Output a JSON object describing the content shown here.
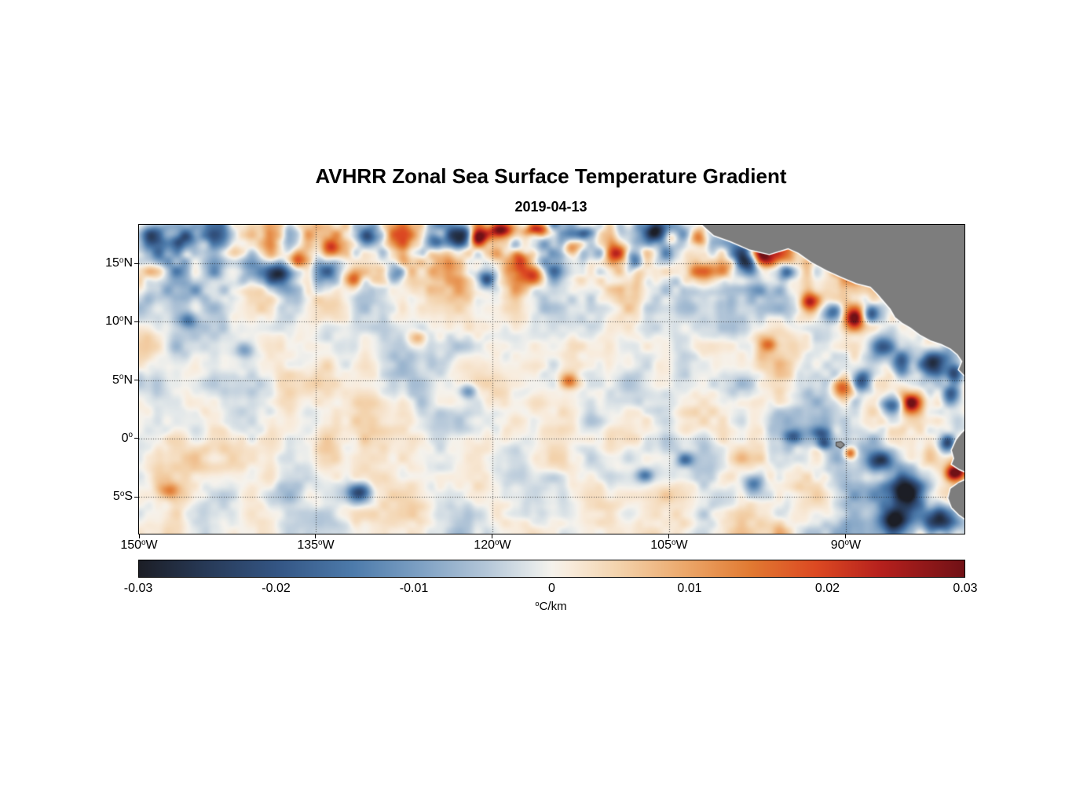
{
  "figure": {
    "title": "AVHRR Zonal Sea Surface Temperature Gradient",
    "subtitle": "2019-04-13"
  },
  "chart_data": {
    "type": "heatmap",
    "title": "AVHRR Zonal Sea Surface Temperature Gradient",
    "subtitle": "2019-04-13",
    "xlim": [
      -150,
      -79.93
    ],
    "ylim": [
      -8.15,
      18.3
    ],
    "grid": {
      "show": true,
      "color": "rgba(30,30,30,0.85)",
      "dash": [
        1,
        2
      ]
    },
    "xticks": [
      {
        "value": -150,
        "label": {
          "text": "150",
          "sup": "o",
          "suffix": "W"
        }
      },
      {
        "value": -135,
        "label": {
          "text": "135",
          "sup": "o",
          "suffix": "W"
        }
      },
      {
        "value": -120,
        "label": {
          "text": "120",
          "sup": "o",
          "suffix": "W"
        }
      },
      {
        "value": -105,
        "label": {
          "text": "105",
          "sup": "o",
          "suffix": "W"
        }
      },
      {
        "value": -90,
        "label": {
          "text": "90",
          "sup": "o",
          "suffix": "W"
        }
      }
    ],
    "yticks": [
      {
        "value": 15,
        "label": {
          "text": "15",
          "sup": "o",
          "suffix": "N"
        }
      },
      {
        "value": 10,
        "label": {
          "text": "10",
          "sup": "o",
          "suffix": "N"
        }
      },
      {
        "value": 5,
        "label": {
          "text": "5",
          "sup": "o",
          "suffix": "N"
        }
      },
      {
        "value": 0,
        "label": {
          "text": "0",
          "sup": "o",
          "suffix": ""
        }
      },
      {
        "value": -5,
        "label": {
          "text": "5",
          "sup": "o",
          "suffix": "S"
        }
      }
    ],
    "colorbar": {
      "min": -0.03,
      "max": 0.03,
      "unit": {
        "sup": "o",
        "text": "C/km"
      },
      "ticks": [
        {
          "value": -0.03,
          "label": "-0.03"
        },
        {
          "value": -0.02,
          "label": "-0.02"
        },
        {
          "value": -0.01,
          "label": "-0.01"
        },
        {
          "value": 0,
          "label": "0"
        },
        {
          "value": 0.01,
          "label": "0.01"
        },
        {
          "value": 0.02,
          "label": "0.02"
        },
        {
          "value": 0.03,
          "label": "0.03"
        }
      ]
    },
    "colormap": [
      [
        0.0,
        "#1c1e26"
      ],
      [
        0.08,
        "#273956"
      ],
      [
        0.17,
        "#345685"
      ],
      [
        0.26,
        "#4d7bab"
      ],
      [
        0.34,
        "#7da0c3"
      ],
      [
        0.42,
        "#b3c6d8"
      ],
      [
        0.48,
        "#e4e9ea"
      ],
      [
        0.5,
        "#f5f2ec"
      ],
      [
        0.52,
        "#f8ecdd"
      ],
      [
        0.58,
        "#f3d3ad"
      ],
      [
        0.66,
        "#eca86b"
      ],
      [
        0.74,
        "#e17a32"
      ],
      [
        0.82,
        "#dc4922"
      ],
      [
        0.9,
        "#b5201d"
      ],
      [
        1.0,
        "#701116"
      ]
    ],
    "texture": {
      "seed": 11,
      "octaves": [
        [
          3.2,
          0.5
        ],
        [
          1.6,
          0.32
        ],
        [
          0.8,
          0.18
        ]
      ],
      "gain": 2.2,
      "base_amp": 0.004,
      "north_amp": 0.008,
      "north_from": 10.5,
      "north_to": 15.5,
      "east_amp": 0.003,
      "east_from": -106,
      "east_to": -88
    },
    "blobs_lon_lat_peak_rx_ry": [
      [
        -149.0,
        17.3,
        -0.014,
        0.9,
        0.8
      ],
      [
        -146.3,
        17.0,
        -0.018,
        1.1,
        0.9
      ],
      [
        -145.8,
        10.1,
        -0.012,
        0.8,
        0.7
      ],
      [
        -141.0,
        7.5,
        -0.01,
        0.8,
        0.7
      ],
      [
        -138.2,
        14.0,
        -0.026,
        1.2,
        1.0
      ],
      [
        -136.8,
        15.4,
        0.018,
        0.9,
        0.8
      ],
      [
        -133.6,
        16.4,
        0.016,
        0.8,
        0.7
      ],
      [
        -131.9,
        13.6,
        0.014,
        0.8,
        0.7
      ],
      [
        -130.3,
        17.3,
        -0.02,
        1.1,
        0.8
      ],
      [
        -128.3,
        14.2,
        -0.022,
        0.9,
        0.9
      ],
      [
        -124.8,
        16.8,
        -0.014,
        0.8,
        0.7
      ],
      [
        -122.6,
        17.4,
        -0.028,
        1.0,
        0.9
      ],
      [
        -121.2,
        17.1,
        0.022,
        0.7,
        0.8
      ],
      [
        -119.2,
        17.9,
        0.03,
        1.0,
        0.7
      ],
      [
        -116.2,
        17.9,
        0.026,
        1.1,
        0.6
      ],
      [
        -117.6,
        15.3,
        0.02,
        0.9,
        0.8
      ],
      [
        -116.4,
        13.9,
        0.022,
        1.1,
        0.9
      ],
      [
        -120.5,
        13.7,
        -0.02,
        0.9,
        0.8
      ],
      [
        -113.3,
        16.3,
        0.018,
        0.9,
        0.8
      ],
      [
        -111.9,
        17.6,
        -0.016,
        0.8,
        0.6
      ],
      [
        -109.4,
        15.9,
        0.026,
        0.9,
        1.0
      ],
      [
        -108.0,
        15.2,
        -0.018,
        0.8,
        0.8
      ],
      [
        -106.2,
        17.6,
        -0.022,
        0.9,
        0.7
      ],
      [
        -104.8,
        17.2,
        0.016,
        0.7,
        0.7
      ],
      [
        -102.6,
        17.3,
        0.024,
        0.8,
        0.8
      ],
      [
        -100.2,
        14.5,
        0.012,
        0.8,
        0.8
      ],
      [
        -98.3,
        14.9,
        -0.016,
        0.8,
        0.8
      ],
      [
        -97.0,
        15.9,
        0.028,
        0.9,
        1.0
      ],
      [
        -95.1,
        14.2,
        -0.022,
        1.0,
        0.9
      ],
      [
        -93.0,
        11.6,
        0.02,
        0.8,
        0.8
      ],
      [
        -91.1,
        10.8,
        -0.02,
        0.9,
        0.8
      ],
      [
        -89.2,
        10.3,
        0.026,
        0.8,
        0.9
      ],
      [
        -87.8,
        10.6,
        -0.018,
        0.7,
        0.7
      ],
      [
        -86.8,
        7.8,
        -0.02,
        0.9,
        0.9
      ],
      [
        -85.2,
        6.3,
        -0.024,
        0.9,
        1.0
      ],
      [
        -82.5,
        6.4,
        -0.03,
        1.3,
        1.1
      ],
      [
        -80.6,
        5.5,
        -0.024,
        0.7,
        0.9
      ],
      [
        -90.2,
        4.3,
        0.026,
        1.0,
        1.0
      ],
      [
        -88.6,
        4.8,
        -0.018,
        0.8,
        0.8
      ],
      [
        -86.0,
        2.8,
        -0.02,
        0.9,
        0.8
      ],
      [
        -84.4,
        3.0,
        0.028,
        0.8,
        0.8
      ],
      [
        -81.0,
        3.8,
        -0.02,
        0.8,
        0.9
      ],
      [
        -96.5,
        8.0,
        0.012,
        0.7,
        0.6
      ],
      [
        -126.5,
        8.6,
        0.011,
        0.8,
        0.6
      ],
      [
        -122.0,
        4.0,
        -0.012,
        0.8,
        0.6
      ],
      [
        -113.5,
        4.9,
        0.012,
        0.7,
        0.6
      ],
      [
        -94.5,
        0.1,
        -0.014,
        0.8,
        0.6
      ],
      [
        -92.0,
        0.3,
        -0.014,
        0.9,
        0.6
      ],
      [
        -91.8,
        -0.5,
        -0.016,
        0.7,
        0.5
      ],
      [
        -89.6,
        -1.3,
        0.02,
        0.5,
        0.5
      ],
      [
        -87.0,
        -2.0,
        -0.022,
        1.1,
        0.9
      ],
      [
        -84.8,
        -4.6,
        -0.034,
        1.6,
        1.6
      ],
      [
        -85.8,
        -7.0,
        -0.026,
        1.3,
        1.0
      ],
      [
        -82.2,
        -7.2,
        -0.03,
        1.6,
        1.3
      ],
      [
        -81.3,
        -0.5,
        -0.026,
        0.7,
        0.8
      ],
      [
        -80.6,
        -3.0,
        0.036,
        0.8,
        0.7
      ],
      [
        -79.9,
        -2.2,
        0.02,
        0.4,
        0.5
      ],
      [
        -131.3,
        -4.7,
        -0.024,
        1.0,
        0.8
      ],
      [
        -107.0,
        -3.2,
        -0.014,
        0.7,
        0.6
      ],
      [
        -103.6,
        -1.9,
        -0.013,
        0.7,
        0.6
      ],
      [
        -97.8,
        -4.0,
        -0.016,
        0.8,
        0.7
      ],
      [
        -147.5,
        -4.5,
        0.012,
        0.9,
        0.7
      ]
    ],
    "nodata_polygons": [
      {
        "name": "caribbean-sea-masked",
        "fill": "#ffffff",
        "pts": [
          [
            -89.2,
            18.5
          ],
          [
            -88.6,
            17.2
          ],
          [
            -87.6,
            16.3
          ],
          [
            -86.3,
            15.9
          ],
          [
            -84.9,
            15.6
          ],
          [
            -83.7,
            15.9
          ],
          [
            -83.0,
            16.7
          ],
          [
            -82.9,
            18.5
          ]
        ]
      }
    ],
    "land_polygons": [
      {
        "name": "central-america",
        "fill": "#7d7d7d",
        "stroke": "#ffffff",
        "stroke_width": 3,
        "pts": [
          [
            -102.3,
            18.4
          ],
          [
            -101.2,
            17.4
          ],
          [
            -99.8,
            16.9
          ],
          [
            -98.2,
            16.2
          ],
          [
            -96.5,
            15.8
          ],
          [
            -94.9,
            16.3
          ],
          [
            -94.0,
            15.9
          ],
          [
            -92.9,
            15.1
          ],
          [
            -91.6,
            14.4
          ],
          [
            -90.3,
            13.8
          ],
          [
            -89.1,
            13.3
          ],
          [
            -87.9,
            13.0
          ],
          [
            -87.3,
            12.4
          ],
          [
            -86.8,
            11.8
          ],
          [
            -86.2,
            11.1
          ],
          [
            -85.8,
            10.4
          ],
          [
            -85.2,
            9.9
          ],
          [
            -84.5,
            9.5
          ],
          [
            -83.7,
            8.9
          ],
          [
            -82.8,
            8.4
          ],
          [
            -81.9,
            8.1
          ],
          [
            -81.1,
            7.7
          ],
          [
            -80.5,
            7.2
          ],
          [
            -80.1,
            6.6
          ],
          [
            -80.4,
            5.9
          ],
          [
            -79.7,
            5.2
          ],
          [
            -79.7,
            18.4
          ]
        ]
      },
      {
        "name": "galapagos-islands",
        "fill": "#8c8c8c",
        "stroke": "#3c3c3c",
        "stroke_width": 2,
        "pts": [
          [
            -90.8,
            -0.35
          ],
          [
            -90.4,
            -0.3
          ],
          [
            -90.15,
            -0.55
          ],
          [
            -90.45,
            -0.8
          ],
          [
            -90.8,
            -0.6
          ]
        ]
      },
      {
        "name": "ecuador-coast",
        "fill": "#7d7d7d",
        "stroke": "#ffffff",
        "stroke_width": 3,
        "pts": [
          [
            -79.7,
            0.9
          ],
          [
            -80.2,
            0.4
          ],
          [
            -80.6,
            -0.1
          ],
          [
            -81.0,
            -1.0
          ],
          [
            -80.8,
            -1.7
          ],
          [
            -81.0,
            -2.2
          ],
          [
            -80.4,
            -2.6
          ],
          [
            -79.7,
            -2.9
          ]
        ]
      },
      {
        "name": "peru-coast",
        "fill": "#7d7d7d",
        "stroke": "#ffffff",
        "stroke_width": 3,
        "pts": [
          [
            -79.7,
            -3.5
          ],
          [
            -80.4,
            -3.8
          ],
          [
            -81.1,
            -4.3
          ],
          [
            -81.3,
            -5.1
          ],
          [
            -81.0,
            -5.9
          ],
          [
            -80.4,
            -6.5
          ],
          [
            -79.7,
            -7.0
          ]
        ]
      }
    ],
    "land_color": "#7d7d7d",
    "axis_color": "#000000"
  }
}
